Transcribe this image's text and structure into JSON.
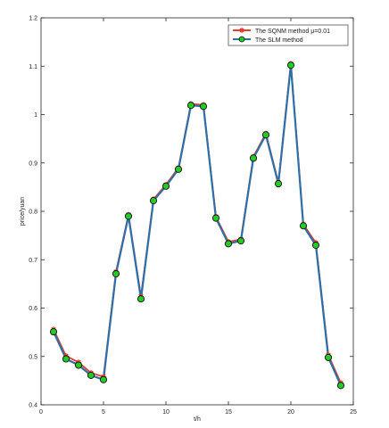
{
  "chart_data": {
    "type": "line",
    "title": "",
    "xlabel": "t/h",
    "ylabel": "price/yuan",
    "xlim": [
      0,
      25
    ],
    "ylim": [
      0.4,
      1.2
    ],
    "xticks": [
      0,
      5,
      10,
      15,
      20,
      25
    ],
    "yticks": [
      0.4,
      0.5,
      0.6,
      0.7,
      0.8,
      0.9,
      1,
      1.1,
      1.2
    ],
    "xtick_labels": [
      "0",
      "5",
      "10",
      "15",
      "20",
      "25"
    ],
    "ytick_labels": [
      "0.4",
      "0.5",
      "0.6",
      "0.7",
      "0.8",
      "0.9",
      "1",
      "1.1",
      "1.2"
    ],
    "grid": false,
    "legend_position": "top-right",
    "x": [
      1,
      2,
      3,
      4,
      5,
      6,
      7,
      8,
      9,
      10,
      11,
      12,
      13,
      14,
      15,
      16,
      17,
      18,
      19,
      20,
      21,
      22,
      23,
      24
    ],
    "series": [
      {
        "name": "The SQNM method μ=0.01",
        "color": "#d9442b",
        "marker_color": "#ee3333",
        "marker": "asterisk",
        "values": [
          0.556,
          0.501,
          0.488,
          0.466,
          0.458,
          0.675,
          0.793,
          0.624,
          0.825,
          0.855,
          0.89,
          1.022,
          1.02,
          0.789,
          0.737,
          0.742,
          0.913,
          0.961,
          0.86,
          1.105,
          0.773,
          0.735,
          0.503,
          0.445
        ]
      },
      {
        "name": "The SLM method",
        "color": "#2f6fa8",
        "marker_color": "#22cc22",
        "marker": "circle",
        "values": [
          0.551,
          0.495,
          0.482,
          0.461,
          0.452,
          0.671,
          0.79,
          0.619,
          0.822,
          0.852,
          0.887,
          1.019,
          1.017,
          0.786,
          0.733,
          0.739,
          0.91,
          0.958,
          0.857,
          1.102,
          0.77,
          0.73,
          0.498,
          0.44
        ]
      }
    ]
  }
}
